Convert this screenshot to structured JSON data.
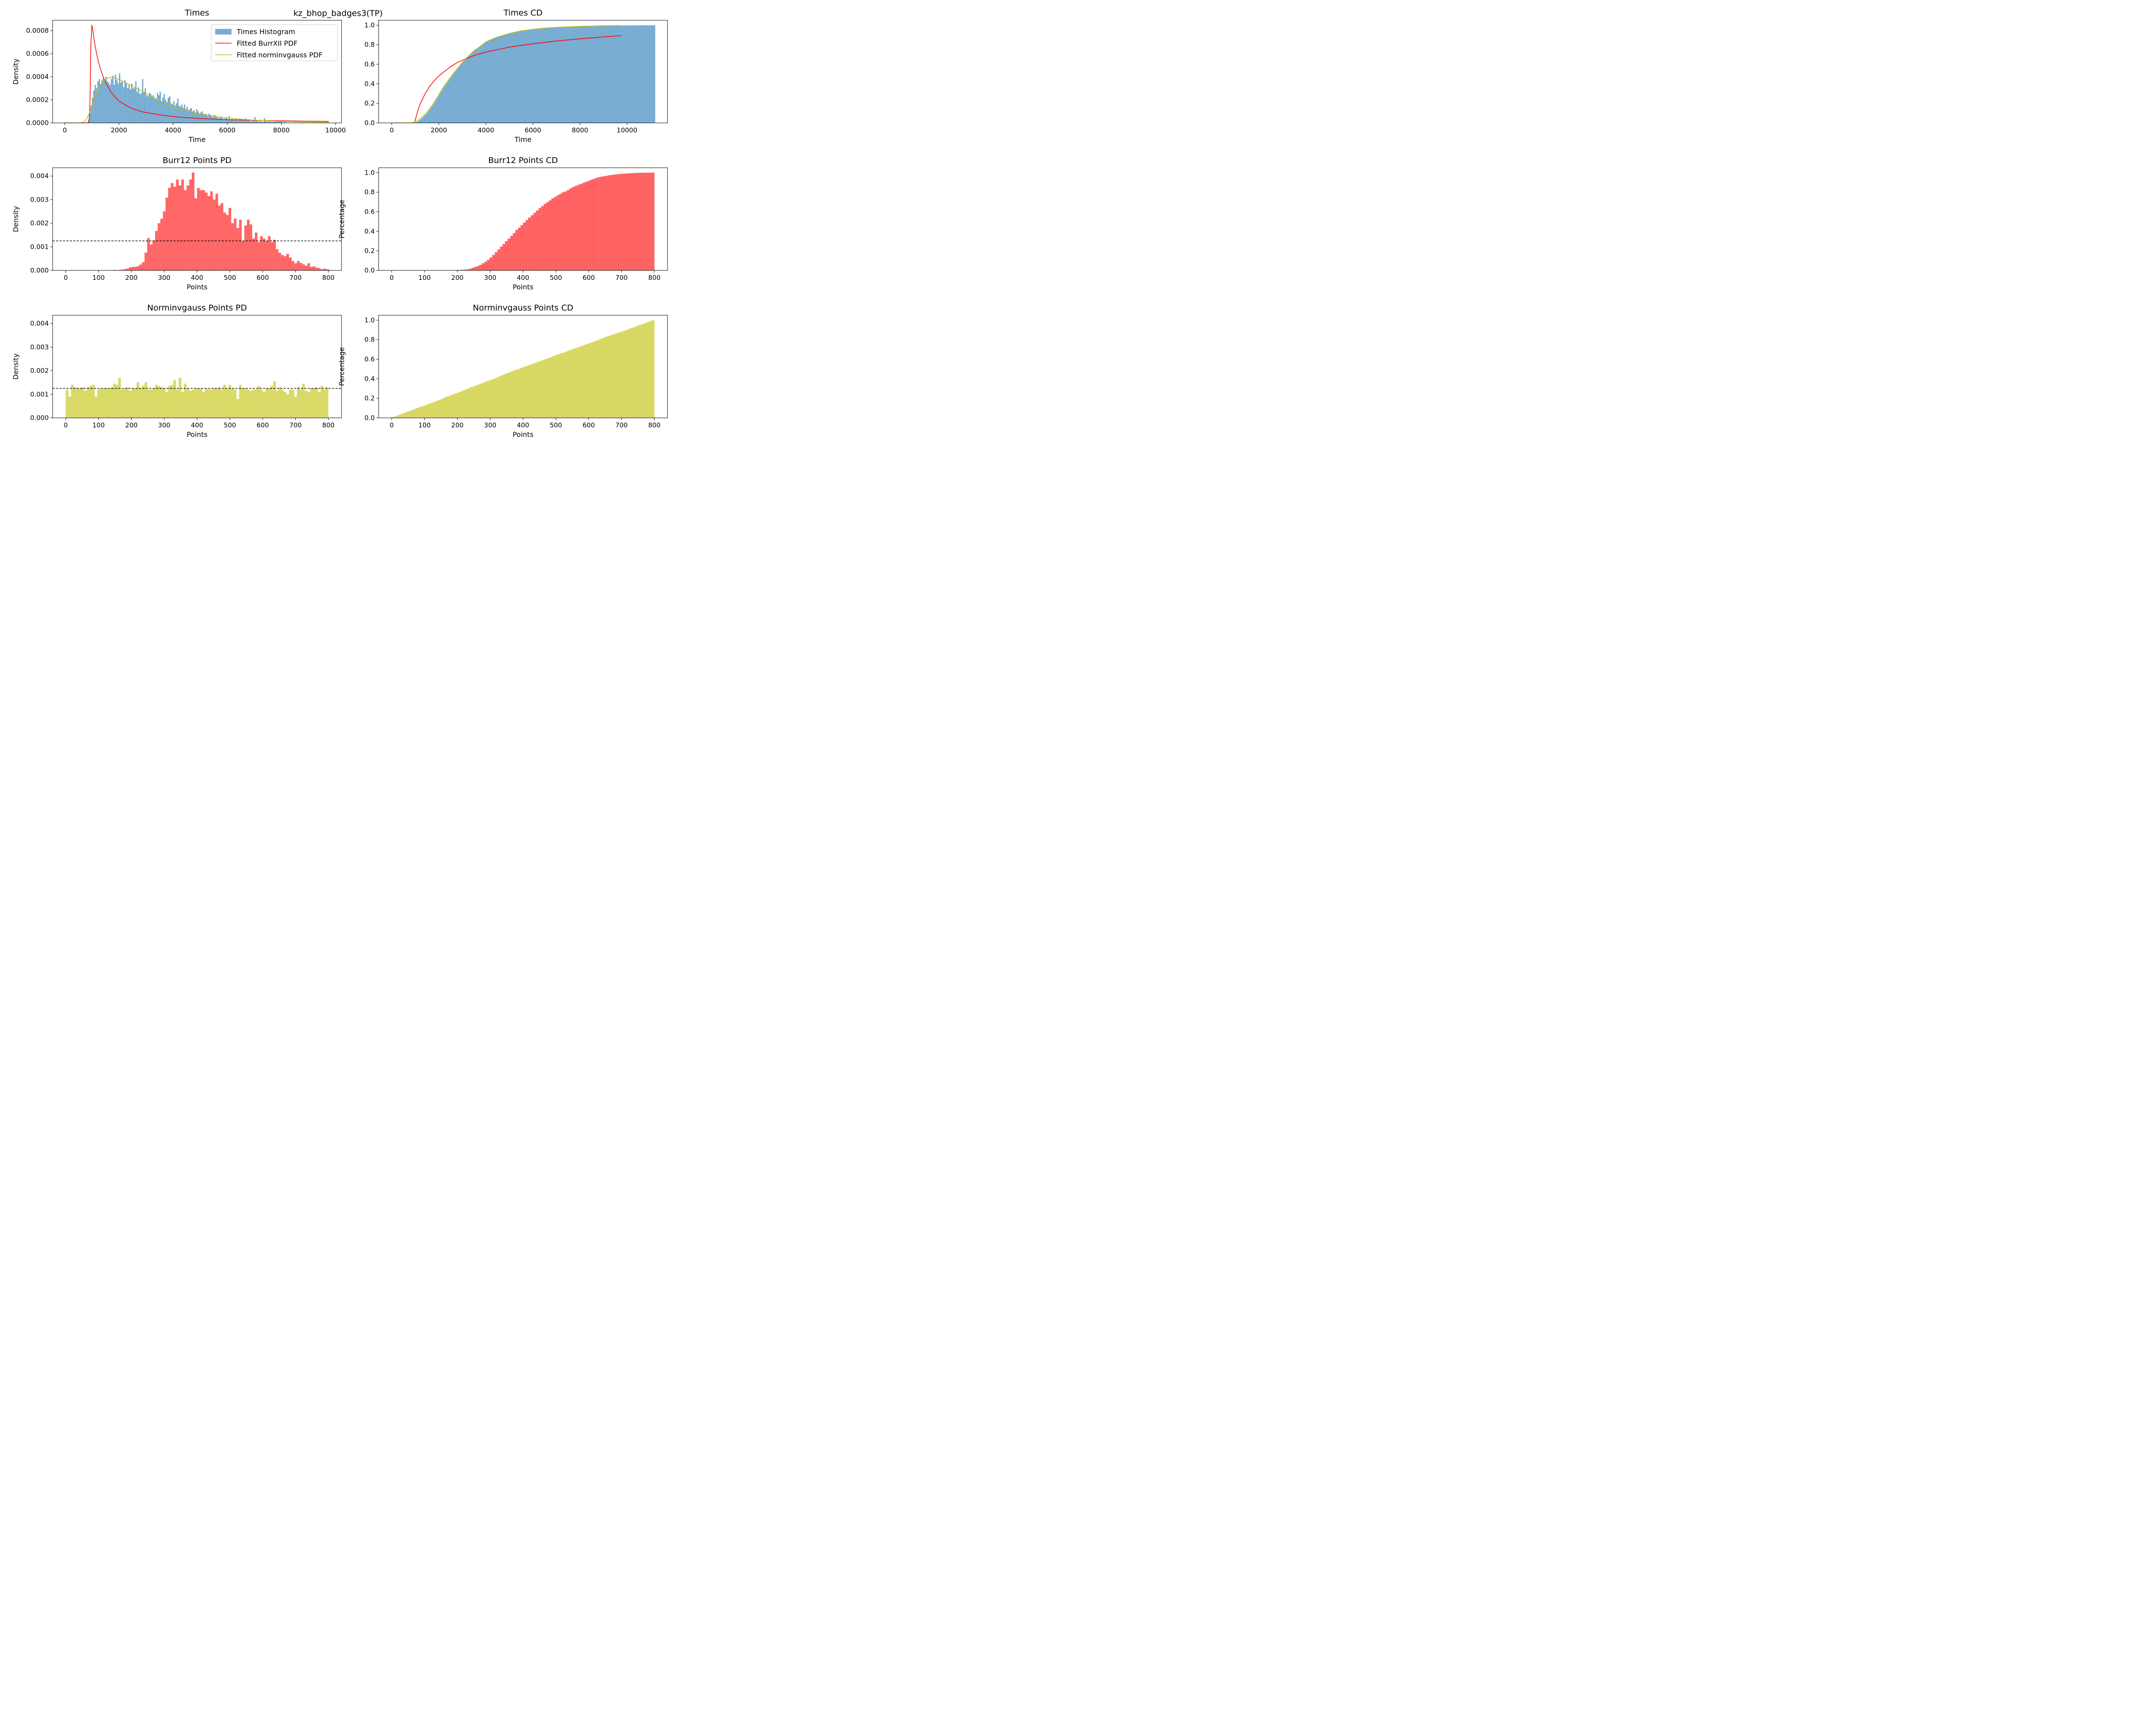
{
  "figure": {
    "suptitle": "kz_bhop_badges3(TP)"
  },
  "colors": {
    "blue": "#1f77b4",
    "red": "#ff0000",
    "olive": "#bfbf00",
    "axis": "#000000"
  },
  "chart_data": [
    {
      "id": "times",
      "type": "bar",
      "title": "Times",
      "xlabel": "Time",
      "ylabel": "Density",
      "xlim": [
        -450,
        10220
      ],
      "ylim": [
        0,
        0.00089
      ],
      "xticks": [
        0,
        2000,
        4000,
        6000,
        8000,
        10000
      ],
      "yticks": [
        0.0,
        0.0002,
        0.0004,
        0.0006,
        0.0008
      ],
      "ytick_decimals": 4,
      "legend_position": "top-right",
      "legend": [
        {
          "label": "Times Histogram",
          "kind": "patch",
          "color": "#1f77b4",
          "alpha": 0.6
        },
        {
          "label": "Fitted BurrXII PDF",
          "kind": "line",
          "color": "#ff0000"
        },
        {
          "label": "Fitted norminvgauss PDF",
          "kind": "line",
          "color": "#bfbf00"
        }
      ],
      "histogram": {
        "name": "Times Histogram",
        "color": "#1f77b4",
        "alpha": 0.6,
        "bin_width": 50,
        "x_start": 850,
        "values": [
          2e-05,
          9e-05,
          0.00015,
          0.00022,
          0.00028,
          0.00033,
          0.0003,
          0.00036,
          0.00038,
          0.00034,
          0.00037,
          0.00039,
          0.00037,
          0.0004,
          0.00036,
          0.00035,
          0.00033,
          0.00038,
          0.00041,
          0.00033,
          0.00042,
          0.00037,
          0.00034,
          0.00043,
          0.00035,
          0.00036,
          0.00031,
          0.00037,
          0.00034,
          0.0003,
          0.00033,
          0.00029,
          0.00034,
          0.0003,
          0.0003,
          0.00036,
          0.00027,
          0.00031,
          0.00025,
          0.00026,
          0.00038,
          0.00027,
          0.0003,
          0.00024,
          0.00023,
          0.00026,
          0.00025,
          0.00023,
          0.00024,
          0.00021,
          0.00021,
          0.00026,
          0.00024,
          0.00027,
          0.00019,
          0.00022,
          0.00025,
          0.0002,
          0.00018,
          0.00022,
          0.00023,
          0.00017,
          0.00016,
          0.00019,
          0.00015,
          0.00017,
          0.00021,
          0.00015,
          0.00014,
          0.00016,
          0.00013,
          0.00016,
          0.00012,
          0.00014,
          0.00011,
          0.00012,
          0.00013,
          0.0001,
          0.00011,
          9e-05,
          0.00012,
          0.0001,
          8e-05,
          9e-05,
          0.0001,
          8e-05,
          7e-05,
          8e-05,
          6e-05,
          8e-05,
          7e-05,
          6e-05,
          5e-05,
          7e-05,
          6e-05,
          5e-05,
          4e-05,
          5e-05,
          5e-05,
          4e-05,
          3e-05,
          4e-05,
          5e-05,
          3e-05,
          6e-05,
          3e-05,
          4e-05,
          3e-05,
          3e-05,
          4e-05,
          2e-05,
          3e-05,
          3e-05,
          3e-05,
          2e-05,
          2e-05,
          4e-05,
          2e-05,
          2e-05,
          2e-05,
          1e-05,
          2e-05,
          2e-05,
          5e-05,
          2e-05,
          2e-05,
          1e-05,
          3e-05,
          1e-05,
          1e-05,
          4e-05,
          2e-05,
          1e-05,
          2e-05,
          1e-05,
          1e-05,
          1e-05,
          1e-05,
          1e-05,
          1e-05,
          1e-05,
          1e-05,
          1e-05,
          1e-05,
          0.0,
          1e-05
        ]
      },
      "lines": [
        {
          "name": "Fitted BurrXII PDF",
          "color": "#ff0000",
          "x": [
            0,
            850,
            880,
            900,
            920,
            940,
            960,
            980,
            1000,
            1030,
            1060,
            1100,
            1150,
            1200,
            1250,
            1300,
            1400,
            1500,
            1600,
            1700,
            1800,
            2000,
            2200,
            2400,
            2600,
            2800,
            3000,
            3500,
            4000,
            4500,
            5000,
            6000,
            7000,
            8000,
            9000,
            9750
          ],
          "y": [
            0,
            0,
            1e-05,
            3e-05,
            0.0001,
            0.0003,
            0.00066,
            0.00075,
            0.00085,
            0.00081,
            0.00076,
            0.0007,
            0.00063,
            0.000575,
            0.000525,
            0.00048,
            0.00041,
            0.000355,
            0.00031,
            0.00027,
            0.00024,
            0.00019,
            0.00016,
            0.000135,
            0.000115,
            0.0001,
            9e-05,
            7e-05,
            5.5e-05,
            4.5e-05,
            3.8e-05,
            2.8e-05,
            2.2e-05,
            1.8e-05,
            1.5e-05,
            1.3e-05
          ]
        },
        {
          "name": "Fitted norminvgauss PDF",
          "color": "#bfbf00",
          "x": [
            0,
            500,
            600,
            700,
            800,
            900,
            1000,
            1100,
            1200,
            1300,
            1400,
            1500,
            1600,
            1700,
            1800,
            1900,
            2000,
            2200,
            2400,
            2600,
            2800,
            3000,
            3200,
            3500,
            3800,
            4000,
            4500,
            5000,
            5500,
            6000,
            6500,
            7000,
            7500,
            8000,
            9000,
            9750
          ],
          "y": [
            0,
            0,
            2e-06,
            8e-06,
            3e-05,
            8e-05,
            0.00015,
            0.00022,
            0.00028,
            0.00032,
            0.00035,
            0.000375,
            0.00039,
            0.000395,
            0.000392,
            0.000385,
            0.000375,
            0.000355,
            0.00033,
            0.000305,
            0.00028,
            0.000255,
            0.00023,
            0.00019,
            0.000158,
            0.00014,
            0.000105,
            7.8e-05,
            5.8e-05,
            4.3e-05,
            3.2e-05,
            2.4e-05,
            1.8e-05,
            1.3e-05,
            7e-06,
            5e-06
          ]
        }
      ]
    },
    {
      "id": "times_cd",
      "type": "area",
      "title": "Times CD",
      "xlabel": "Time",
      "ylabel": "",
      "xlim": [
        -560,
        11720
      ],
      "ylim": [
        0,
        1.05
      ],
      "xticks": [
        0,
        2000,
        4000,
        6000,
        8000,
        10000
      ],
      "yticks": [
        0.0,
        0.2,
        0.4,
        0.6,
        0.8,
        1.0
      ],
      "ytick_decimals": 1,
      "area": {
        "color": "#1f77b4",
        "alpha": 0.6,
        "x": [
          1000,
          1200,
          1500,
          1800,
          2000,
          2200,
          2500,
          2800,
          3000,
          3200,
          3500,
          3800,
          4000,
          4500,
          5000,
          5500,
          6000,
          6500,
          7000,
          8000,
          9000,
          10000,
          11200
        ],
        "y": [
          0.0,
          0.03,
          0.1,
          0.2,
          0.28,
          0.36,
          0.46,
          0.56,
          0.62,
          0.67,
          0.74,
          0.79,
          0.83,
          0.88,
          0.92,
          0.945,
          0.96,
          0.97,
          0.978,
          0.988,
          0.993,
          0.997,
          1.0
        ]
      },
      "lines": [
        {
          "name": "BurrXII CDF",
          "color": "#ff0000",
          "x": [
            0,
            900,
            950,
            1000,
            1100,
            1200,
            1400,
            1600,
            1800,
            2000,
            2200,
            2500,
            2800,
            3000,
            3500,
            4000,
            4500,
            5000,
            6000,
            7000,
            8000,
            9000,
            9750
          ],
          "y": [
            0,
            0,
            0.002,
            0.03,
            0.12,
            0.19,
            0.29,
            0.37,
            0.43,
            0.48,
            0.52,
            0.575,
            0.62,
            0.64,
            0.69,
            0.725,
            0.75,
            0.775,
            0.81,
            0.838,
            0.86,
            0.88,
            0.893
          ]
        },
        {
          "name": "norminvgauss CDF",
          "color": "#bfbf00",
          "x": [
            0,
            700,
            900,
            1000,
            1200,
            1500,
            1800,
            2000,
            2200,
            2500,
            2800,
            3000,
            3200,
            3500,
            3800,
            4000,
            4500,
            5000,
            5500,
            6000,
            6500,
            7000,
            8000,
            9000,
            9750
          ],
          "y": [
            0,
            0,
            0.003,
            0.01,
            0.04,
            0.11,
            0.21,
            0.29,
            0.37,
            0.47,
            0.56,
            0.62,
            0.67,
            0.74,
            0.79,
            0.83,
            0.88,
            0.915,
            0.94,
            0.958,
            0.97,
            0.978,
            0.988,
            0.994,
            0.996
          ]
        }
      ]
    },
    {
      "id": "burr_pd",
      "type": "bar",
      "title": "Burr12 Points PD",
      "xlabel": "Points",
      "ylabel": "Density",
      "xlim": [
        -40,
        840
      ],
      "ylim": [
        0,
        0.00435
      ],
      "xticks": [
        0,
        100,
        200,
        300,
        400,
        500,
        600,
        700,
        800
      ],
      "yticks": [
        0.0,
        0.001,
        0.002,
        0.003,
        0.004
      ],
      "ytick_decimals": 3,
      "hline": 0.00125,
      "histogram": {
        "name": "Burr12",
        "color": "#ff0000",
        "alpha": 0.6,
        "bin_width": 8,
        "x_start": 0,
        "values": [
          0,
          0,
          0,
          0,
          0,
          0,
          0,
          0,
          0,
          0,
          0,
          0,
          0,
          0,
          0,
          0,
          0,
          0,
          2e-05,
          0,
          2e-05,
          3e-05,
          5e-05,
          8e-05,
          0.00013,
          0.00015,
          0.00015,
          0.00018,
          0.00025,
          0.00035,
          0.00075,
          0.00137,
          0.0011,
          0.00127,
          0.00167,
          0.002,
          0.00219,
          0.0025,
          0.00308,
          0.0035,
          0.0037,
          0.00355,
          0.00385,
          0.0036,
          0.00385,
          0.0034,
          0.0036,
          0.00385,
          0.00415,
          0.00305,
          0.0035,
          0.0034,
          0.0034,
          0.0033,
          0.00315,
          0.00335,
          0.003,
          0.00325,
          0.00275,
          0.00285,
          0.00245,
          0.00235,
          0.00265,
          0.002,
          0.0022,
          0.0018,
          0.00215,
          0.00125,
          0.0019,
          0.00215,
          0.00195,
          0.00135,
          0.0016,
          0.0012,
          0.00145,
          0.00135,
          0.00125,
          0.00145,
          0.0012,
          0.0013,
          0.0009,
          0.00075,
          0.00065,
          0.0006,
          0.0007,
          0.00055,
          0.0004,
          0.0003,
          0.0004,
          0.00032,
          0.00026,
          0.0002,
          0.0003,
          0.00015,
          0.00017,
          0.00012,
          0.0001,
          5e-05,
          8e-05,
          5e-05,
          2e-05,
          1e-05
        ]
      }
    },
    {
      "id": "burr_cd",
      "type": "bar",
      "title": "Burr12 Points CD",
      "xlabel": "Points",
      "ylabel": "Percentage",
      "xlim": [
        -40,
        840
      ],
      "ylim": [
        0,
        1.05
      ],
      "xticks": [
        0,
        100,
        200,
        300,
        400,
        500,
        600,
        700,
        800
      ],
      "yticks": [
        0.0,
        0.2,
        0.4,
        0.6,
        0.8,
        1.0
      ],
      "ytick_decimals": 1,
      "step_area": {
        "color": "#ff0000",
        "alpha": 0.6,
        "bin_width": 8,
        "x_start": 0,
        "source": "burr_pd"
      }
    },
    {
      "id": "nig_pd",
      "type": "bar",
      "title": "Norminvgauss Points PD",
      "xlabel": "Points",
      "ylabel": "Density",
      "xlim": [
        -40,
        840
      ],
      "ylim": [
        0,
        0.00435
      ],
      "xticks": [
        0,
        100,
        200,
        300,
        400,
        500,
        600,
        700,
        800
      ],
      "yticks": [
        0.0,
        0.001,
        0.002,
        0.003,
        0.004
      ],
      "ytick_decimals": 3,
      "hline": 0.00125,
      "histogram": {
        "name": "Norminvgauss",
        "color": "#bfbf00",
        "alpha": 0.6,
        "bin_width": 8,
        "x_start": 0,
        "values": [
          0.0012,
          0.0009,
          0.0014,
          0.0013,
          0.00125,
          0.00125,
          0.0013,
          0.00115,
          0.0013,
          0.00135,
          0.0014,
          0.0009,
          0.0012,
          0.00125,
          0.00125,
          0.00125,
          0.00125,
          0.0013,
          0.00145,
          0.0014,
          0.0017,
          0.0012,
          0.00125,
          0.0013,
          0.00115,
          0.00125,
          0.00125,
          0.0015,
          0.00125,
          0.00135,
          0.0015,
          0.0012,
          0.0012,
          0.00125,
          0.0014,
          0.00135,
          0.0013,
          0.00125,
          0.0011,
          0.00135,
          0.0014,
          0.0016,
          0.0012,
          0.0017,
          0.0011,
          0.00145,
          0.00125,
          0.00115,
          0.0012,
          0.00125,
          0.00125,
          0.00125,
          0.0011,
          0.00125,
          0.0012,
          0.0012,
          0.00125,
          0.00125,
          0.0013,
          0.0012,
          0.0014,
          0.00125,
          0.0014,
          0.00125,
          0.0012,
          0.0008,
          0.0014,
          0.00125,
          0.00125,
          0.0012,
          0.00115,
          0.0012,
          0.0012,
          0.00135,
          0.0012,
          0.0011,
          0.00125,
          0.00125,
          0.00135,
          0.00155,
          0.00115,
          0.0013,
          0.0012,
          0.0011,
          0.001,
          0.0012,
          0.0012,
          0.0009,
          0.0013,
          0.0012,
          0.00145,
          0.00115,
          0.0011,
          0.00125,
          0.00125,
          0.0013,
          0.0011,
          0.00135,
          0.0012,
          0.0013,
          0.0011,
          0.0009,
          0.00135,
          0.00125,
          0.00135,
          0.0012,
          0.0012,
          0.0011,
          0.00115,
          0.0013,
          0.00125,
          0.00155,
          0.00125,
          0.00115,
          0.0012,
          0.0012,
          0.0013,
          0.00135,
          0.0012,
          0.0012,
          0.00125,
          0.00145,
          0.0011,
          0.001,
          0.00125,
          0.00125,
          0.0012,
          0.00095,
          0.0012,
          0.0012,
          0.00125,
          0.00125,
          0.00125,
          0.0013,
          0.0008,
          0.00125,
          0.0012,
          0.0013,
          0.0012,
          0.0013,
          0.0012,
          0.0012,
          0.00125,
          0.00125,
          0.00125,
          0.00145,
          0.0013,
          0.00145,
          0.0014,
          0.0012,
          0.0013,
          0.0012,
          0.00115,
          0.0012,
          0.0011,
          0.0012,
          0.0012,
          0.0012,
          0.0013,
          0.0012,
          0.00115,
          0.0013,
          0.00135,
          0.0015,
          0.00155,
          0.0014,
          0.0012,
          0.0015,
          0.0013,
          0.00135,
          0.0014,
          0.0013,
          0.0012,
          0.0013,
          0.00135,
          0.0012,
          0.00125,
          0.0012,
          0.0012,
          0.0013,
          0.0012,
          0.0013,
          0.0013,
          0.0013,
          0.0013,
          0.0013
        ],
        "use_first": 100
      }
    },
    {
      "id": "nig_cd",
      "type": "bar",
      "title": "Norminvgauss Points CD",
      "xlabel": "Points",
      "ylabel": "Percentage",
      "xlim": [
        -40,
        840
      ],
      "ylim": [
        0,
        1.05
      ],
      "xticks": [
        0,
        100,
        200,
        300,
        400,
        500,
        600,
        700,
        800
      ],
      "yticks": [
        0.0,
        0.2,
        0.4,
        0.6,
        0.8,
        1.0
      ],
      "ytick_decimals": 1,
      "step_area": {
        "color": "#bfbf00",
        "alpha": 0.6,
        "bin_width": 8,
        "x_start": 0,
        "source": "nig_pd"
      }
    }
  ]
}
